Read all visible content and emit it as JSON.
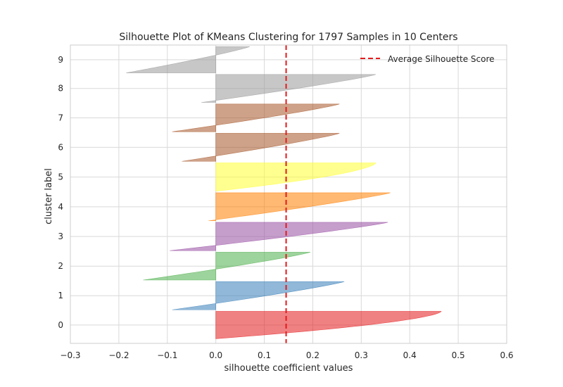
{
  "chart_data": {
    "type": "silhouette",
    "title": "Silhouette Plot of KMeans Clustering for 1797 Samples in 10 Centers",
    "xlabel": "silhouette coefficient values",
    "ylabel": "cluster label",
    "xlim": [
      -0.3,
      0.6
    ],
    "x_ticks": [
      "−0.3",
      "−0.2",
      "−0.1",
      "0.0",
      "0.1",
      "0.2",
      "0.3",
      "0.4",
      "0.5",
      "0.6"
    ],
    "x_tick_values": [
      -0.3,
      -0.2,
      -0.1,
      0.0,
      0.1,
      0.2,
      0.3,
      0.4,
      0.5,
      0.6
    ],
    "grid": true,
    "legend": {
      "placement": "top-right",
      "label": "Average Silhouette Score"
    },
    "average_silhouette_score": 0.145,
    "average_line_color": "#e41a1c",
    "clusters": [
      {
        "label": "0",
        "size": 177,
        "max": 0.465,
        "min": 0.0,
        "color": "#e41a1c"
      },
      {
        "label": "1",
        "size": 182,
        "max": 0.265,
        "min": -0.09,
        "color": "#377eb8"
      },
      {
        "label": "2",
        "size": 180,
        "max": 0.195,
        "min": -0.15,
        "color": "#4daf4a"
      },
      {
        "label": "3",
        "size": 183,
        "max": 0.355,
        "min": -0.095,
        "color": "#984ea3"
      },
      {
        "label": "4",
        "size": 181,
        "max": 0.36,
        "min": -0.015,
        "color": "#ff7f00"
      },
      {
        "label": "5",
        "size": 183,
        "max": 0.33,
        "min": 0.0,
        "color": "#ffff33"
      },
      {
        "label": "6",
        "size": 181,
        "max": 0.255,
        "min": -0.07,
        "color": "#a65628"
      },
      {
        "label": "7",
        "size": 179,
        "max": 0.255,
        "min": -0.09,
        "color": "#a65628"
      },
      {
        "label": "8",
        "size": 181,
        "max": 0.33,
        "min": -0.03,
        "color": "#999999"
      },
      {
        "label": "9",
        "size": 170,
        "max": 0.07,
        "min": -0.185,
        "color": "#999999"
      }
    ]
  }
}
